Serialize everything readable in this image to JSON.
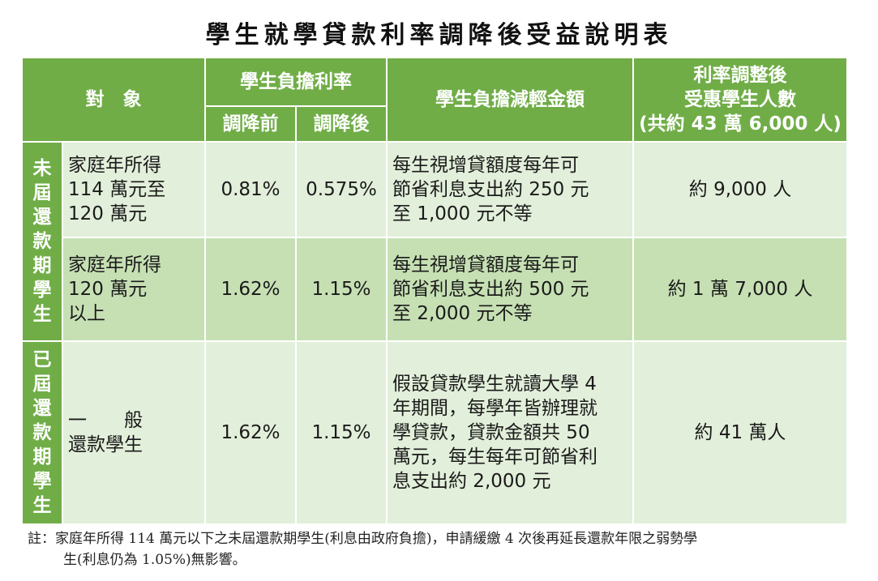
{
  "title": "學生就學貸款利率調降後受益說明表",
  "headers": {
    "target": "對　象",
    "rate": "學生負擔利率",
    "rate_before": "調降前",
    "rate_after": "調降後",
    "reduction": "學生負擔減輕金額",
    "beneficiaries_line1": "利率調整後",
    "beneficiaries_line2": "受惠學生人數",
    "beneficiaries_line3": "(共約 43 萬 6,000 人)"
  },
  "groups": {
    "unpaid_chars": [
      "未",
      "屆",
      "還",
      "款",
      "期",
      "學",
      "生"
    ],
    "paying_chars": [
      "已",
      "屆",
      "還",
      "款",
      "期",
      "學",
      "生"
    ]
  },
  "rows": [
    {
      "target_lines": [
        "家庭年所得",
        "114 萬元至",
        "120 萬元"
      ],
      "before": "0.81%",
      "after": "0.575%",
      "reduction_lines": [
        "每生視增貸額度每年可",
        "節省利息支出約 250 元",
        "至 1,000 元不等"
      ],
      "beneficiaries": "約 9,000 人"
    },
    {
      "target_lines": [
        "家庭年所得",
        "120 萬元",
        "以上"
      ],
      "before": "1.62%",
      "after": "1.15%",
      "reduction_lines": [
        "每生視增貸額度每年可",
        "節省利息支出約 500 元",
        "至 2,000 元不等"
      ],
      "beneficiaries": "約 1 萬 7,000 人"
    },
    {
      "target_lines": [
        "一　　般",
        "還款學生"
      ],
      "before": "1.62%",
      "after": "1.15%",
      "reduction_lines": [
        "假設貸款學生就讀大學 4",
        "年期間，每學年皆辦理就",
        "學貸款，貸款金額共 50",
        "萬元，每生每年可節省利",
        "息支出約 2,000 元"
      ],
      "beneficiaries": "約 41 萬人"
    }
  ],
  "note": {
    "line1": "註：家庭年所得 114 萬元以下之未屆還款期學生(利息由政府負擔)，申請緩繳 4 次後再延長還款年限之弱勢學",
    "line2": "生(利息仍為 1.05%)無影響。"
  }
}
